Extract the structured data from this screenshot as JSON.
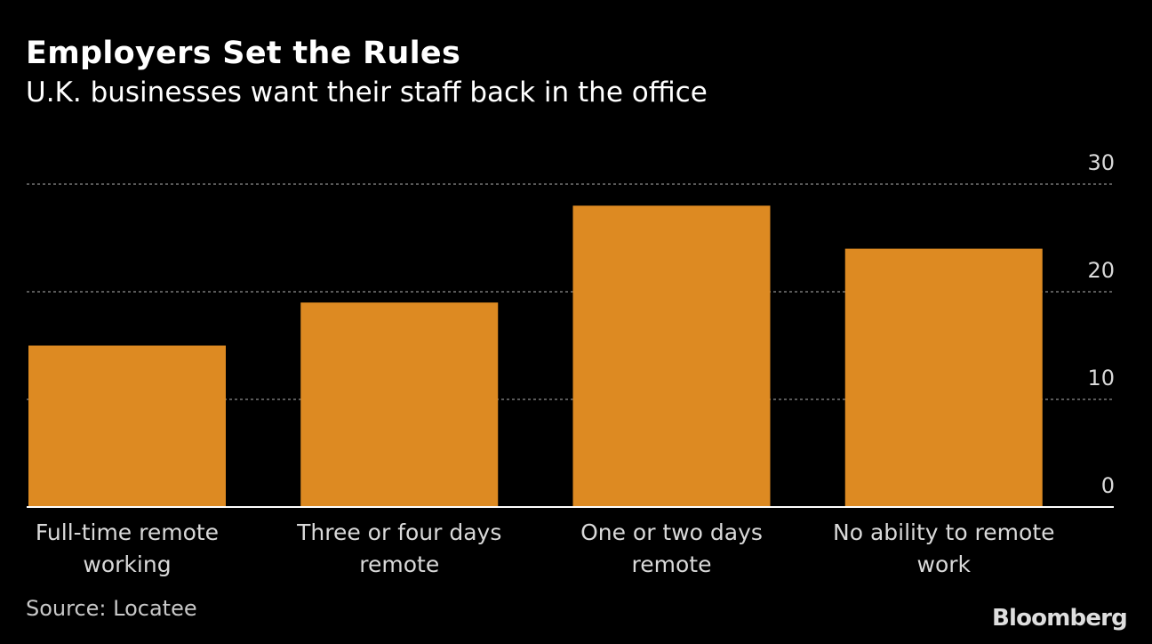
{
  "header": {
    "title": "Employers Set the Rules",
    "subtitle": "U.K. businesses want their staff back in the office"
  },
  "footer": {
    "source": "Source: Locatee",
    "brand": "Bloomberg"
  },
  "colors": {
    "background": "#000000",
    "bar": "#dd8a22",
    "grid": "#777777",
    "text": "#d9d9d9"
  },
  "chart_data": {
    "type": "bar",
    "categories": [
      [
        "Full-time remote",
        "working"
      ],
      [
        "Three or four days",
        "remote"
      ],
      [
        "One or two days",
        "remote"
      ],
      [
        "No ability to remote",
        "work"
      ]
    ],
    "values": [
      15,
      19,
      28,
      24
    ],
    "ylim": [
      0,
      30
    ],
    "yticks": [
      0,
      10,
      20,
      30
    ],
    "y_axis_side": "right",
    "grid": true,
    "title": "Employers Set the Rules",
    "subtitle": "U.K. businesses want their staff back in the office",
    "xlabel": "",
    "ylabel": ""
  }
}
